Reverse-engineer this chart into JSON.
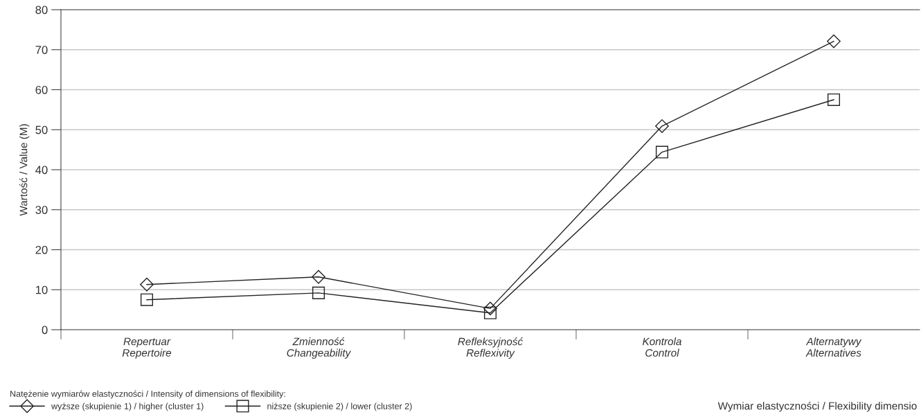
{
  "chart_data": {
    "type": "line",
    "categories": [
      "Repertuar\nRepertoire",
      "Zmienność\nChangeability",
      "Refleksyjność\nReflexivity",
      "Kontrola\nControl",
      "Alternatywy\nAlternatives"
    ],
    "series": [
      {
        "name": "wyższe (skupienie 1) / higher (cluster 1)",
        "color": "#222222",
        "marker": "diamond",
        "values": [
          11.3,
          13.2,
          5.3,
          50.9,
          72.1
        ]
      },
      {
        "name": "niższe (skupienie 2) / lower (cluster 2)",
        "color": "#222222",
        "marker": "square",
        "values": [
          7.5,
          9.2,
          4.2,
          44.4,
          57.5
        ]
      }
    ],
    "ylabel": "Wartość / Value (M)",
    "xlabel": "Wymiar elastyczności / Flexibility dimensio",
    "legend_title": "Natężenie wymiarów elastyczności / Intensity of dimensions of flexibility:",
    "legend": "bottom left",
    "ylim": [
      0,
      80
    ],
    "yticks": [
      0,
      10,
      20,
      30,
      40,
      50,
      60,
      70,
      80
    ],
    "grid": "y",
    "line_style": "solid"
  }
}
